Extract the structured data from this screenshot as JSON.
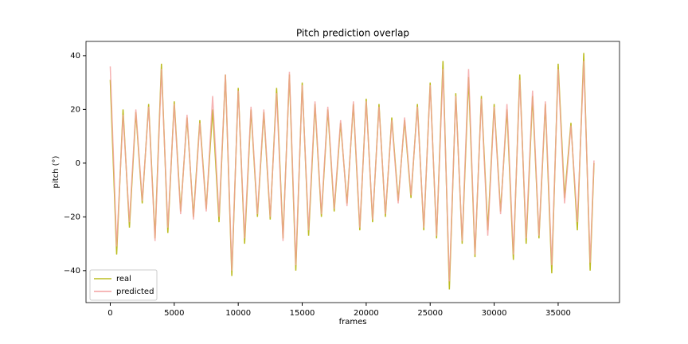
{
  "chart_data": {
    "type": "line",
    "title": "Pitch prediction overlap",
    "x_label": "frames",
    "y_label": "pitch (°)",
    "x": [
      0,
      500,
      1000,
      1500,
      2000,
      2500,
      3000,
      3500,
      4000,
      4500,
      5000,
      5500,
      6000,
      6500,
      7000,
      7500,
      8000,
      8500,
      9000,
      9500,
      10000,
      10500,
      11000,
      11500,
      12000,
      12500,
      13000,
      13500,
      14000,
      14500,
      15000,
      15500,
      16000,
      16500,
      17000,
      17500,
      18000,
      18500,
      19000,
      19500,
      20000,
      20500,
      21000,
      21500,
      22000,
      22500,
      23000,
      23500,
      24000,
      24500,
      25000,
      25500,
      26000,
      26500,
      27000,
      27500,
      28000,
      28500,
      29000,
      29500,
      30000,
      30500,
      31000,
      31500,
      32000,
      32500,
      33000,
      33500,
      34000,
      34500,
      35000,
      35500,
      36000,
      36500,
      37000,
      37500,
      37800
    ],
    "series": [
      {
        "name": "real",
        "color": "#bcbd22",
        "values": [
          31,
          -34,
          20,
          -24,
          19,
          -15,
          22,
          -28,
          37,
          -26,
          23,
          -18,
          17,
          -20,
          16,
          -17,
          20,
          -22,
          33,
          -42,
          28,
          -30,
          20,
          -20,
          19,
          -21,
          28,
          -28,
          33,
          -40,
          30,
          -27,
          22,
          -20,
          20,
          -18,
          15,
          -15,
          22,
          -25,
          24,
          -22,
          22,
          -20,
          17,
          -14,
          16,
          -13,
          22,
          -25,
          30,
          -28,
          38,
          -47,
          26,
          -30,
          32,
          -35,
          25,
          -25,
          22,
          -18,
          20,
          -36,
          33,
          -30,
          25,
          -28,
          22,
          -41,
          37,
          -13,
          15,
          -25,
          41,
          -40,
          0
        ]
      },
      {
        "name": "predicted",
        "color": "#f4a0a0",
        "values": [
          36,
          -31,
          18,
          -22,
          20,
          -14,
          21,
          -29,
          35,
          -24,
          22,
          -19,
          18,
          -21,
          15,
          -18,
          25,
          -20,
          33,
          -40,
          27,
          -28,
          21,
          -19,
          20,
          -20,
          26,
          -29,
          34,
          -38,
          29,
          -25,
          23,
          -19,
          21,
          -17,
          16,
          -16,
          23,
          -24,
          23,
          -21,
          21,
          -19,
          16,
          -15,
          17,
          -12,
          21,
          -24,
          29,
          -27,
          35,
          -44,
          25,
          -29,
          35,
          -34,
          24,
          -27,
          21,
          -19,
          22,
          -34,
          31,
          -28,
          27,
          -27,
          23,
          -38,
          35,
          -15,
          14,
          -22,
          38,
          -37,
          1
        ]
      }
    ],
    "xlim": [
      -1895,
      39795
    ],
    "ylim": [
      -51.9,
      45.3
    ],
    "xticks": [
      0,
      5000,
      10000,
      15000,
      20000,
      25000,
      30000,
      35000
    ],
    "yticks": [
      {
        "value": -40,
        "label": "−40"
      },
      {
        "value": -20,
        "label": "−20"
      },
      0,
      20,
      40
    ],
    "legend": "lower left"
  }
}
